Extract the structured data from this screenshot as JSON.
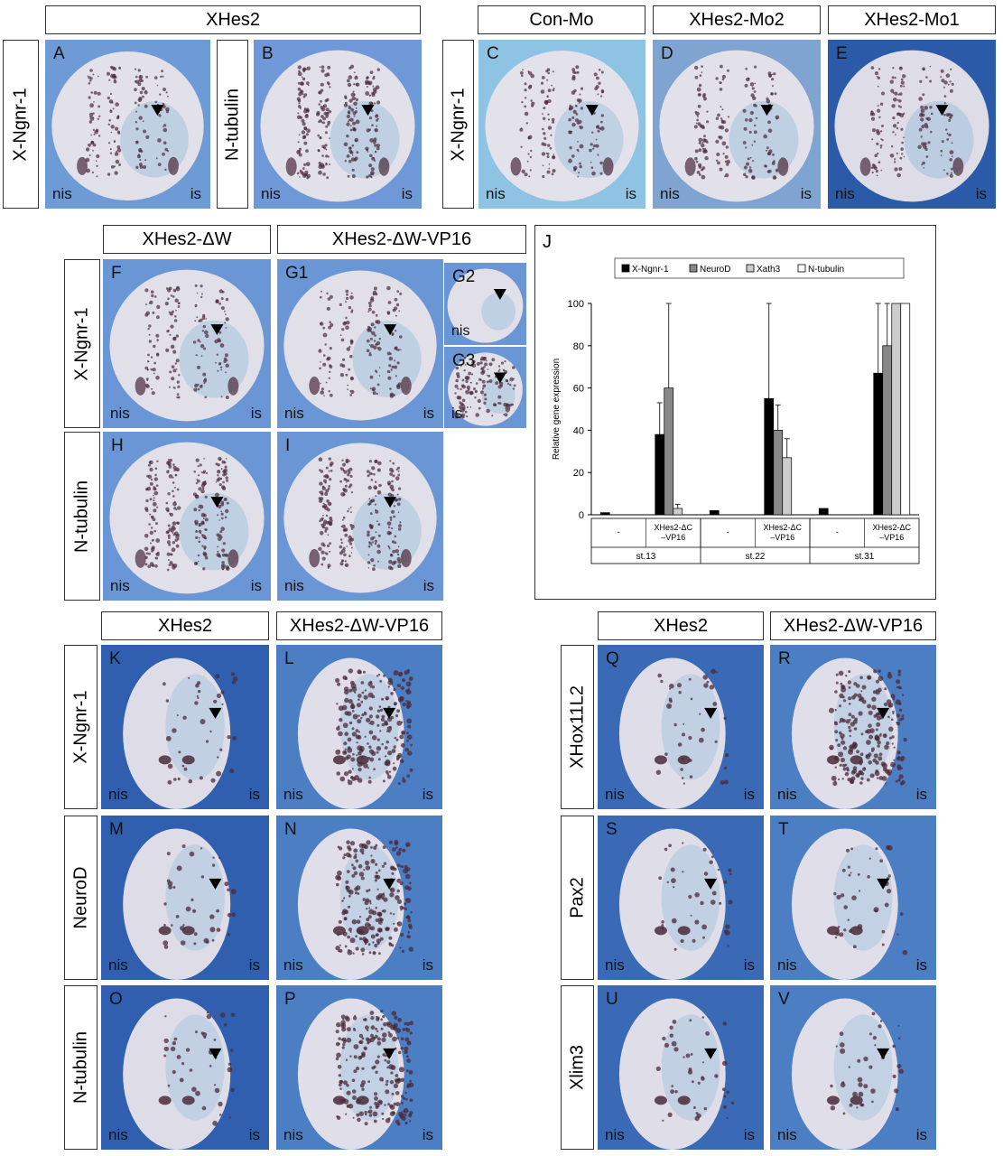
{
  "headers": {
    "xhes2_top": "XHes2",
    "con_mo": "Con-Mo",
    "xhes2_mo2": "XHes2-Mo2",
    "xhes2_mo1": "XHes2-Mo1",
    "xhes2_dw": "XHes2-ΔW",
    "xhes2_dw_vp16_mid": "XHes2-ΔW-VP16",
    "xhes2_bl": "XHes2",
    "xhes2_dw_vp16_bl": "XHes2-ΔW-VP16",
    "xhes2_br": "XHes2",
    "xhes2_dw_vp16_br": "XHes2-ΔW-VP16"
  },
  "row_labels": {
    "ab_a": "X-Ngnr-1",
    "ab_b": "N-tubulin",
    "cde": "X-Ngnr-1",
    "fg": "X-Ngnr-1",
    "hi": "N-tubulin",
    "kl": "X-Ngnr-1",
    "mn": "NeuroD",
    "op": "N-tubulin",
    "qr": "XHox11L2",
    "st": "Pax2",
    "uv": "Xlim3"
  },
  "side_labels": {
    "left": "nis",
    "right": "is"
  },
  "panels": [
    {
      "id": "A",
      "bg": "#6e9ad6",
      "type": "neurula",
      "stain": "sparse"
    },
    {
      "id": "B",
      "bg": "#6f98d8",
      "type": "neurula",
      "stain": "stripes"
    },
    {
      "id": "C",
      "bg": "#8fc3e4",
      "type": "neurula",
      "stain": "sparse"
    },
    {
      "id": "D",
      "bg": "#7fa4d2",
      "type": "neurula",
      "stain": "sparse"
    },
    {
      "id": "E",
      "bg": "#2a5aa8",
      "type": "neurula",
      "stain": "sparse"
    },
    {
      "id": "F",
      "bg": "#6b96d6",
      "type": "neurula",
      "stain": "sparse"
    },
    {
      "id": "G1",
      "bg": "#6b96d6",
      "type": "neurula",
      "stain": "sparse"
    },
    {
      "id": "G2",
      "bg": "#6b96d6",
      "type": "small",
      "stain": "none"
    },
    {
      "id": "G3",
      "bg": "#6b96d6",
      "type": "small",
      "stain": "speckle"
    },
    {
      "id": "H",
      "bg": "#6b96d6",
      "type": "neurula",
      "stain": "stripes"
    },
    {
      "id": "I",
      "bg": "#6b96d6",
      "type": "neurula",
      "stain": "stripes"
    },
    {
      "id": "K",
      "bg": "#2f5fae",
      "type": "tailbud",
      "stain": "light"
    },
    {
      "id": "L",
      "bg": "#4c7ec4",
      "type": "tailbud",
      "stain": "dense"
    },
    {
      "id": "M",
      "bg": "#2f5fae",
      "type": "tailbud",
      "stain": "light"
    },
    {
      "id": "N",
      "bg": "#4c7ec4",
      "type": "tailbud",
      "stain": "dense"
    },
    {
      "id": "O",
      "bg": "#2f5fae",
      "type": "tailbud",
      "stain": "light"
    },
    {
      "id": "P",
      "bg": "#4c7ec4",
      "type": "tailbud",
      "stain": "dense"
    },
    {
      "id": "Q",
      "bg": "#3a6ab6",
      "type": "tailbud",
      "stain": "light"
    },
    {
      "id": "R",
      "bg": "#4c7ec4",
      "type": "tailbud",
      "stain": "dense"
    },
    {
      "id": "S",
      "bg": "#3a6ab6",
      "type": "tailbud",
      "stain": "light"
    },
    {
      "id": "T",
      "bg": "#4c7ec4",
      "type": "tailbud",
      "stain": "light"
    },
    {
      "id": "U",
      "bg": "#3a6ab6",
      "type": "tailbud",
      "stain": "light"
    },
    {
      "id": "V",
      "bg": "#4c7ec4",
      "type": "tailbud",
      "stain": "light"
    }
  ],
  "colors": {
    "embryo": "#e8e4ea",
    "stain": "#4a2a3a",
    "bluestain": "#7fb2d8"
  },
  "chart_data": {
    "type": "bar",
    "panel_label": "J",
    "ylabel": "Relative gene expression",
    "ylim": [
      0,
      100
    ],
    "yticks": [
      0,
      20,
      40,
      60,
      80,
      100
    ],
    "groups": [
      "st.13",
      "st.22",
      "st.31"
    ],
    "categories": [
      "-",
      "XHes2-ΔC –VP16",
      "-",
      "XHes2-ΔC –VP16",
      "-",
      "XHes2-ΔC –VP16"
    ],
    "series": [
      {
        "name": "X-Ngnr-1",
        "color": "#000000",
        "values": [
          1,
          38,
          2,
          55,
          3,
          67
        ],
        "errors": [
          0,
          15,
          0,
          45,
          0,
          33
        ]
      },
      {
        "name": "NeuroD",
        "color": "#888888",
        "values": [
          0,
          60,
          0,
          40,
          0,
          80
        ],
        "errors": [
          0,
          40,
          0,
          12,
          0,
          20
        ]
      },
      {
        "name": "Xath3",
        "color": "#cccccc",
        "values": [
          0,
          3,
          0,
          27,
          0,
          100
        ],
        "errors": [
          0,
          2,
          0,
          9,
          0,
          0
        ]
      },
      {
        "name": "N-tubulin",
        "color": "#ffffff",
        "values": [
          0,
          0,
          0,
          0,
          0,
          100
        ],
        "errors": [
          0,
          0,
          0,
          0,
          0,
          0
        ]
      }
    ]
  }
}
